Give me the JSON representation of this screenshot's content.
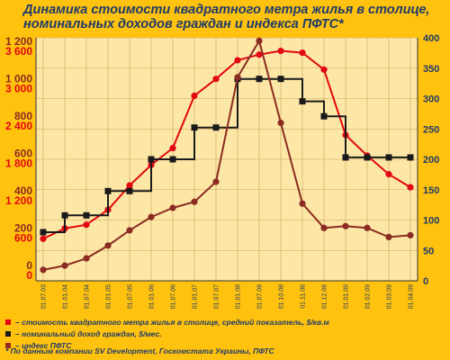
{
  "title_line1": "Динамика стоимости квадратного метра жилья в столице,",
  "title_line2": "номинальных доходов граждан и индекса ПФТС*",
  "legend": [
    {
      "label": "– стоимость квадратного метра жилья в столице, средний показатель, $/кв.м",
      "color": "#e30613"
    },
    {
      "label": "– номинальный доход граждан, $/мес.",
      "color": "#1a1a1a"
    },
    {
      "label": "– индекс ПФТС",
      "color": "#8b2b23"
    }
  ],
  "footnote": "* По данным компании SV Development, Госкомстата Украины, ПФТС",
  "chart_data": {
    "type": "line",
    "x": [
      "01.07.03",
      "01.01.04",
      "01.07.04",
      "01.01.05",
      "01.07.05",
      "01.01.06",
      "01.07.06",
      "01.01.07",
      "01.07.07",
      "01.01.08",
      "01.07.08",
      "01.10.08",
      "01.11.08",
      "01.12.08",
      "01.01.09",
      "01.02.09",
      "01.03.09",
      "01.04.09"
    ],
    "left_axis_ticks": [
      {
        "v": 0,
        "red": "0",
        "dark": "0"
      },
      {
        "v": 600,
        "red": "600",
        "dark": "200"
      },
      {
        "v": 1200,
        "red": "1 200",
        "dark": "400"
      },
      {
        "v": 1800,
        "red": "1 800",
        "dark": "600"
      },
      {
        "v": 2400,
        "red": "2 400",
        "dark": "800"
      },
      {
        "v": 3000,
        "red": "3 000",
        "dark": "1 000"
      },
      {
        "v": 3600,
        "red": "3 600",
        "dark": "1 200"
      }
    ],
    "right_axis_ticks": [
      "0",
      "50",
      "100",
      "150",
      "200",
      "250",
      "300",
      "350",
      "400"
    ],
    "ylim_left": [
      0,
      3900
    ],
    "ylim_right": [
      0,
      400
    ],
    "grid": true,
    "series": [
      {
        "name": "стоимость квадратного метра жилья в столице, средний показатель, $/кв.м",
        "color": "#e30613",
        "axis": "left",
        "values": [
          675,
          840,
          900,
          1140,
          1530,
          1860,
          2130,
          2970,
          3240,
          3540,
          3630,
          3690,
          3660,
          3390,
          2340,
          2010,
          1710,
          1500
        ]
      },
      {
        "name": "номинальный доход граждан, $/мес.",
        "color": "#1a1a1a",
        "axis": "left",
        "values": [
          780,
          1050,
          1050,
          1440,
          1440,
          1950,
          1950,
          2460,
          2460,
          3240,
          3240,
          3240,
          2880,
          2640,
          1980,
          1980,
          1980,
          1980
        ]
      },
      {
        "name": "индекс ПФТС",
        "color": "#8b2b23",
        "axis": "right",
        "values": [
          18,
          25,
          37,
          58,
          83,
          105,
          120,
          130,
          163,
          335,
          395,
          260,
          127,
          87,
          90,
          87,
          72,
          75
        ]
      }
    ]
  }
}
